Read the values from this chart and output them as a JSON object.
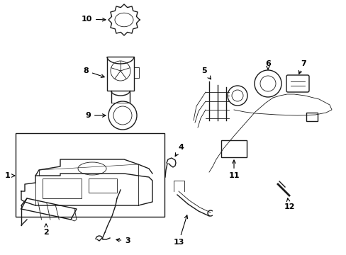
{
  "background_color": "#ffffff",
  "line_color": "#1a1a1a",
  "figsize": [
    4.89,
    3.6
  ],
  "dpi": 100,
  "lw_main": 1.0,
  "lw_thin": 0.6,
  "label_fontsize": 8.0
}
